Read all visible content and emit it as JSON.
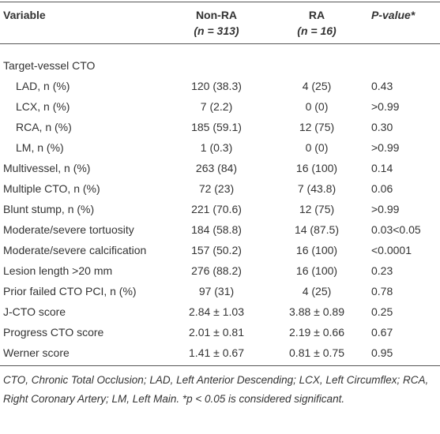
{
  "table": {
    "header": {
      "variable": "Variable",
      "non_ra": [
        "Non-RA",
        "(n = 313)"
      ],
      "ra": [
        "RA",
        "(n = 16)"
      ],
      "p": "P-value*"
    },
    "rows": [
      {
        "variable": "Target-vessel CTO"
      },
      {
        "variable": "LAD, n (%)",
        "non_ra": "120 (38.3)",
        "ra": "4 (25)",
        "p": "0.43",
        "indent": true
      },
      {
        "variable": "LCX, n (%)",
        "non_ra": "7 (2.2)",
        "ra": "0 (0)",
        "p": ">0.99",
        "indent": true
      },
      {
        "variable": "RCA, n (%)",
        "non_ra": "185 (59.1)",
        "ra": "12 (75)",
        "p": "0.30",
        "indent": true
      },
      {
        "variable": "LM, n (%)",
        "non_ra": "1 (0.3)",
        "ra": "0 (0)",
        "p": ">0.99",
        "indent": true
      },
      {
        "variable": "Multivessel, n (%)",
        "non_ra": "263 (84)",
        "ra": "16 (100)",
        "p": "0.14"
      },
      {
        "variable": "Multiple CTO, n (%)",
        "non_ra": "72 (23)",
        "ra": "7 (43.8)",
        "p": "0.06"
      },
      {
        "variable": "Blunt stump, n (%)",
        "non_ra": "221 (70.6)",
        "ra": "12 (75)",
        "p": ">0.99"
      },
      {
        "variable": "Moderate/severe tortuosity",
        "non_ra": "184 (58.8)",
        "ra": "14 (87.5)",
        "p": "0.03<0.05"
      },
      {
        "variable": "Moderate/severe calcification",
        "non_ra": "157 (50.2)",
        "ra": "16 (100)",
        "p": "<0.0001"
      },
      {
        "variable": "Lesion length >20 mm",
        "non_ra": "276 (88.2)",
        "ra": "16 (100)",
        "p": "0.23"
      },
      {
        "variable": "Prior failed CTO PCI, n (%)",
        "non_ra": "97 (31)",
        "ra": "4 (25)",
        "p": "0.78"
      },
      {
        "variable": "J-CTO score",
        "non_ra": "2.84 ± 1.03",
        "ra": "3.88 ± 0.89",
        "p": "0.25"
      },
      {
        "variable": "Progress CTO score",
        "non_ra": "2.01 ± 0.81",
        "ra": "2.19 ± 0.66",
        "p": "0.67"
      },
      {
        "variable": "Werner score",
        "non_ra": "1.41 ± 0.67",
        "ra": "0.81 ± 0.75",
        "p": "0.95"
      }
    ],
    "footnote": "CTO, Chronic Total Occlusion; LAD, Left Anterior Descending; LCX, Left Circumflex; RCA, Right Coronary Artery; LM, Left Main. *p < 0.05 is considered significant."
  }
}
